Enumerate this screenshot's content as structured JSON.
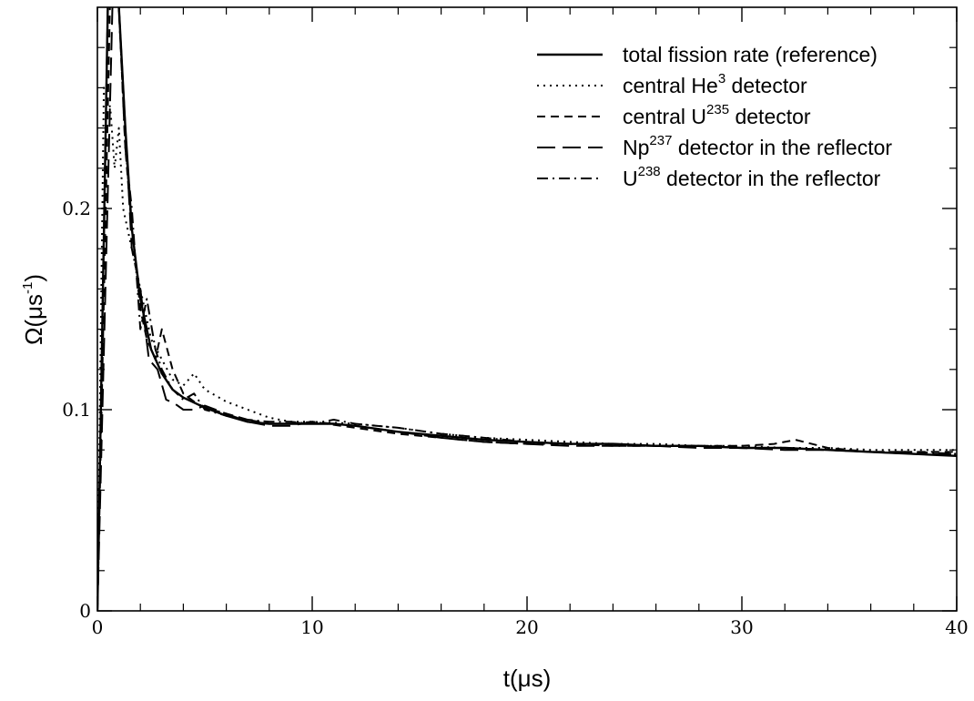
{
  "chart_data": {
    "type": "line",
    "xlabel": "t(μs)",
    "ylabel": "Ω(μs",
    "ylabel_sup": "-1",
    "ylabel_close": ")",
    "xlim": [
      0,
      40
    ],
    "ylim": [
      0,
      0.3
    ],
    "xticks": [
      0,
      10,
      20,
      30,
      40
    ],
    "xtick_labels": [
      "0",
      "10",
      "20",
      "30",
      "40"
    ],
    "yticks": [
      0,
      0.1,
      0.2
    ],
    "ytick_labels": [
      "0",
      "0.1",
      "0.2"
    ],
    "grid": false,
    "legend_position": "top-right",
    "series": [
      {
        "name": "total fission rate (reference)",
        "legend": {
          "pre": "total fission rate (reference)",
          "sup": "",
          "post": ""
        },
        "dash": "solid",
        "x": [
          0,
          0.5,
          1.0,
          1.3,
          1.6,
          2.0,
          2.5,
          3.0,
          3.5,
          4.0,
          5.0,
          6.0,
          7.0,
          8.0,
          9.0,
          10,
          11,
          12,
          14,
          16,
          18,
          20,
          22,
          24,
          26,
          28,
          30,
          32,
          34,
          36,
          38,
          40
        ],
        "y": [
          0,
          0.31,
          0.3,
          0.24,
          0.19,
          0.155,
          0.13,
          0.118,
          0.11,
          0.106,
          0.101,
          0.097,
          0.094,
          0.093,
          0.093,
          0.093,
          0.093,
          0.092,
          0.089,
          0.087,
          0.085,
          0.084,
          0.083,
          0.083,
          0.082,
          0.082,
          0.081,
          0.081,
          0.08,
          0.079,
          0.078,
          0.077
        ]
      },
      {
        "name": "central He3 detector",
        "legend": {
          "pre": "central He",
          "sup": "3",
          "post": " detector"
        },
        "dash": "dotted",
        "x": [
          0,
          0.3,
          0.6,
          0.8,
          1.0,
          1.2,
          1.5,
          2.0,
          2.5,
          3.0,
          3.5,
          4.0,
          4.5,
          5.0,
          5.5,
          6.0,
          7.0,
          8.0,
          9.0,
          10,
          12,
          14,
          16,
          18,
          20,
          22,
          24,
          26,
          28,
          30,
          32,
          34,
          36,
          38,
          40
        ],
        "y": [
          0,
          0.26,
          0.25,
          0.22,
          0.24,
          0.2,
          0.185,
          0.16,
          0.135,
          0.125,
          0.115,
          0.112,
          0.118,
          0.11,
          0.107,
          0.104,
          0.1,
          0.096,
          0.094,
          0.094,
          0.093,
          0.091,
          0.088,
          0.086,
          0.085,
          0.084,
          0.083,
          0.083,
          0.082,
          0.082,
          0.081,
          0.081,
          0.08,
          0.08,
          0.08
        ]
      },
      {
        "name": "central U235 detector",
        "legend": {
          "pre": "central U",
          "sup": "235",
          "post": " detector"
        },
        "dash": "dashed",
        "x": [
          0,
          0.6,
          1.0,
          1.3,
          1.6,
          2.0,
          2.3,
          2.7,
          3.0,
          3.5,
          4.0,
          4.5,
          5.0,
          6.0,
          7.0,
          8.0,
          9.0,
          10,
          12,
          14,
          16,
          18,
          20,
          22,
          24,
          26,
          28,
          30,
          31.5,
          32.5,
          34,
          36,
          38,
          40
        ],
        "y": [
          0,
          0.31,
          0.3,
          0.23,
          0.19,
          0.15,
          0.135,
          0.125,
          0.14,
          0.12,
          0.108,
          0.104,
          0.101,
          0.098,
          0.095,
          0.093,
          0.093,
          0.094,
          0.091,
          0.088,
          0.086,
          0.084,
          0.083,
          0.083,
          0.082,
          0.082,
          0.082,
          0.082,
          0.083,
          0.085,
          0.081,
          0.079,
          0.079,
          0.079
        ]
      },
      {
        "name": "Np237 detector in the reflector",
        "legend": {
          "pre": "Np",
          "sup": "237",
          "post": " detector in the reflector"
        },
        "dash": "longdash",
        "x": [
          0,
          0.7,
          1.0,
          1.3,
          1.6,
          2.0,
          2.4,
          2.8,
          3.2,
          3.6,
          4.0,
          4.5,
          5.0,
          6.0,
          7.0,
          8.0,
          9.0,
          10,
          12,
          14,
          16,
          18,
          20,
          22,
          24,
          26,
          28,
          30,
          32,
          34,
          36,
          38,
          40
        ],
        "y": [
          0,
          0.3,
          0.3,
          0.24,
          0.18,
          0.16,
          0.125,
          0.12,
          0.105,
          0.103,
          0.1,
          0.1,
          0.102,
          0.098,
          0.094,
          0.092,
          0.092,
          0.094,
          0.092,
          0.089,
          0.086,
          0.084,
          0.083,
          0.082,
          0.082,
          0.082,
          0.081,
          0.081,
          0.08,
          0.08,
          0.079,
          0.078,
          0.078
        ]
      },
      {
        "name": "U238 detector in the reflector",
        "legend": {
          "pre": "U",
          "sup": "238",
          "post": " detector in the reflector"
        },
        "dash": "dashdot",
        "x": [
          0,
          0.5,
          1.0,
          1.3,
          1.6,
          2.0,
          2.3,
          2.7,
          3.0,
          3.5,
          4.0,
          4.5,
          5.0,
          6.0,
          7.0,
          8.0,
          9.0,
          10,
          11,
          12,
          13,
          14,
          16,
          18,
          20,
          22,
          24,
          26,
          28,
          30,
          32,
          34,
          36,
          38,
          40
        ],
        "y": [
          0,
          0.31,
          0.3,
          0.23,
          0.2,
          0.14,
          0.155,
          0.13,
          0.12,
          0.11,
          0.105,
          0.108,
          0.1,
          0.097,
          0.095,
          0.094,
          0.094,
          0.093,
          0.095,
          0.093,
          0.092,
          0.091,
          0.088,
          0.086,
          0.084,
          0.083,
          0.083,
          0.082,
          0.082,
          0.081,
          0.081,
          0.08,
          0.079,
          0.079,
          0.078
        ]
      }
    ]
  }
}
